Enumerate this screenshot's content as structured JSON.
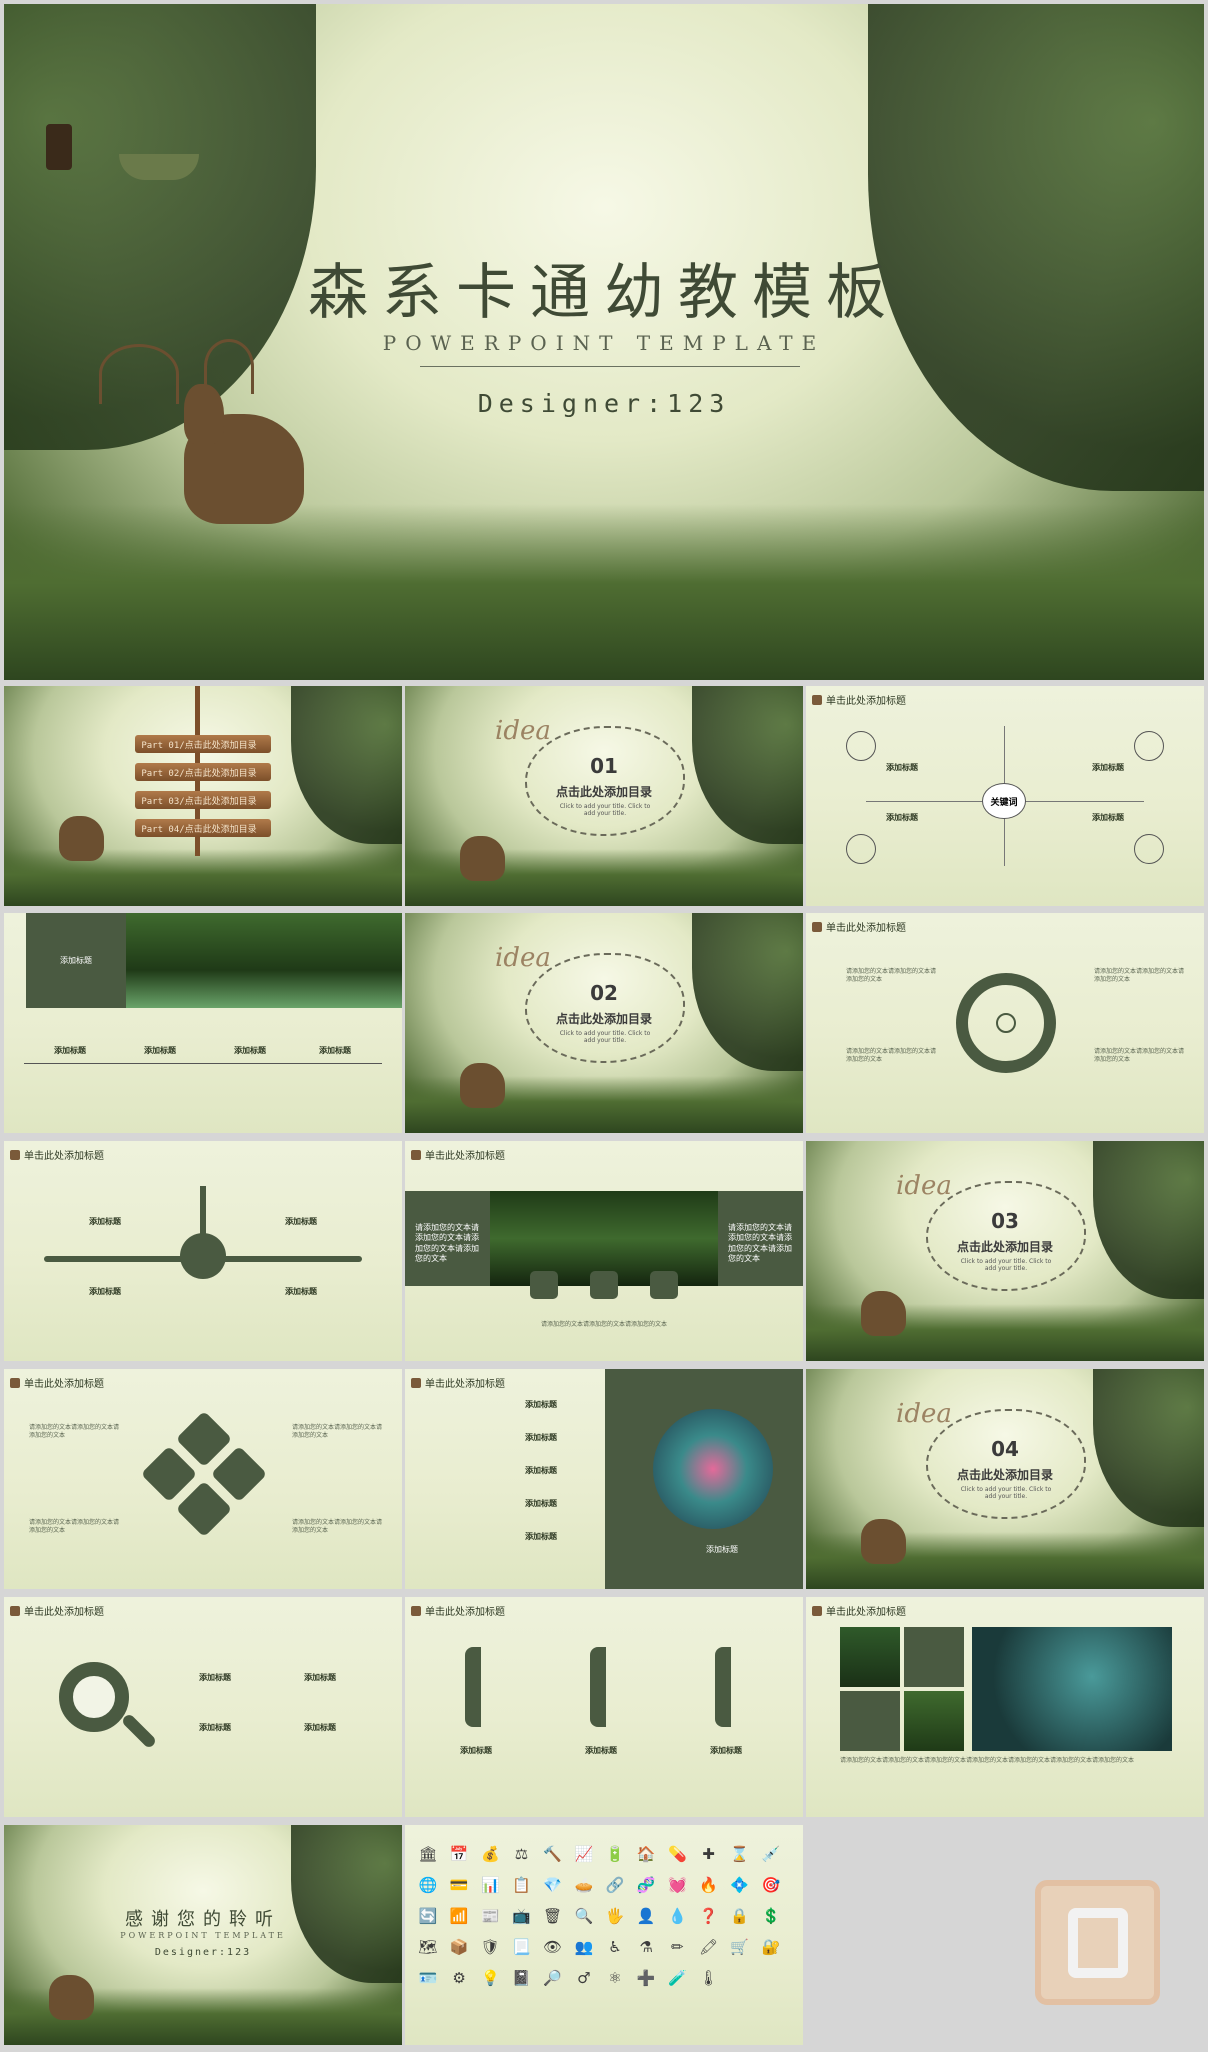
{
  "hero": {
    "title": "森系卡通幼教模板",
    "subtitle": "POWERPOINT TEMPLATE",
    "designer": "Designer:123"
  },
  "toc": {
    "items": [
      "Part 01/点击此处添加目录",
      "Part 02/点击此处添加目录",
      "Part 03/点击此处添加目录",
      "Part 04/点击此处添加目录"
    ]
  },
  "section": {
    "idea": "idea",
    "heading": "点击此处添加目录",
    "sub": "Click to add your title. Click to add your title.",
    "nums": [
      "01",
      "02",
      "03",
      "04"
    ]
  },
  "common": {
    "slide_header": "单击此处添加标题",
    "add_title": "添加标题",
    "keyword": "关键词",
    "body": "请添加您的文本请添加您的文本请添加您的文本",
    "body_long": "请添加您的文本请添加您的文本请添加您的文本请添加您的文本请添加您的文本请添加您的文本请添加您的文本",
    "dark_text": "请添加您的文本请添加您的文本请添加您的文本请添加您的文本",
    "caption": "请添加您的文本请添加您的文本请添加您的文本"
  },
  "thanks": {
    "title": "感谢您的聆听",
    "subtitle": "POWERPOINT TEMPLATE",
    "designer": "Designer:123"
  },
  "icons": [
    "🏛",
    "📅",
    "💰",
    "⚖",
    "🔨",
    "📈",
    "🔋",
    "🏠",
    "💊",
    "✚",
    "⌛",
    "💉",
    "🌐",
    "💳",
    "📊",
    "📋",
    "💎",
    "🥧",
    "🔗",
    "🧬",
    "💓",
    "🔥",
    "💠",
    "🎯",
    "🔄",
    "📶",
    "📰",
    "📺",
    "🗑",
    "🔍",
    "🖐",
    "👤",
    "💧",
    "❓",
    "🔒",
    "💲",
    "🗺",
    "📦",
    "🛡",
    "📃",
    "👁",
    "👥",
    "♿",
    "⚗",
    "✏",
    "🖍",
    "🛒",
    "🔐",
    "🪪",
    "⚙",
    "💡",
    "📓",
    "🔎",
    "♂",
    "⚛",
    "➕",
    "🧪",
    "🌡"
  ],
  "colors": {
    "dark_green": "#4a5a41",
    "bg": "#eef2dc",
    "wood": "#9a6a3e"
  }
}
